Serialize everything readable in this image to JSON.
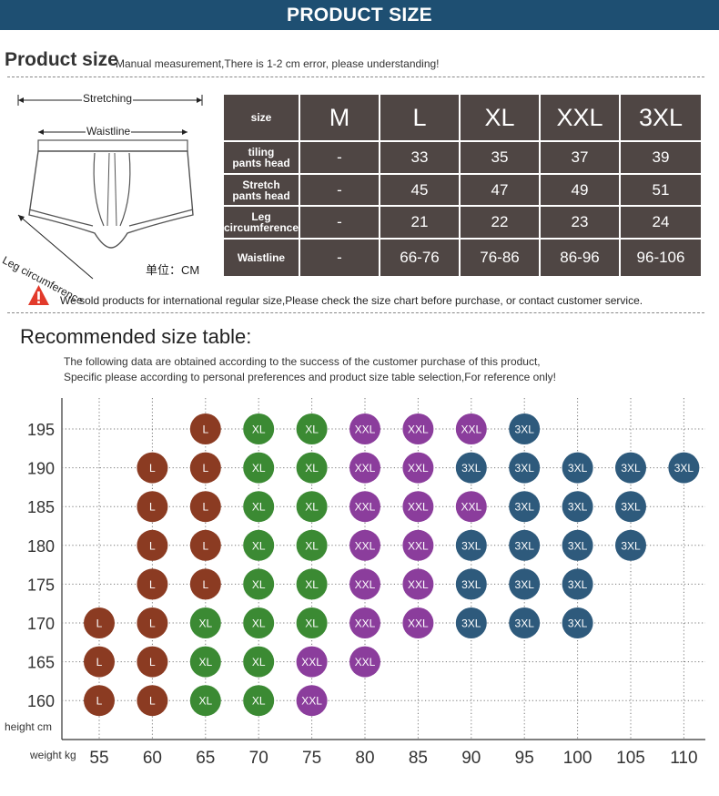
{
  "banner": {
    "title": "PRODUCT SIZE"
  },
  "product_size": {
    "title": "Product size",
    "note": "Manual measurement,There is 1-2 cm error, please understanding!"
  },
  "diagram": {
    "stretching": "Stretching",
    "waistline": "Waistline",
    "leg": "Leg circumference",
    "unit": "单位：CM"
  },
  "size_table": {
    "header_label": "size",
    "sizes": [
      "M",
      "L",
      "XL",
      "XXL",
      "3XL"
    ],
    "rows": [
      {
        "label": [
          "tiling",
          "pants head"
        ],
        "values": [
          "-",
          "33",
          "35",
          "37",
          "39"
        ]
      },
      {
        "label": [
          "Stretch",
          "pants head"
        ],
        "values": [
          "-",
          "45",
          "47",
          "49",
          "51"
        ]
      },
      {
        "label": [
          "Leg",
          "circumference"
        ],
        "values": [
          "-",
          "21",
          "22",
          "23",
          "24"
        ]
      },
      {
        "label": [
          "Waistline"
        ],
        "values": [
          "-",
          "66-76",
          "76-86",
          "86-96",
          "96-106"
        ]
      }
    ],
    "bg_color": "#4f4644"
  },
  "warning": {
    "text": "We sold products for international regular size,Please check the size chart before purchase, or contact customer service.",
    "icon": "warning-icon",
    "color": "#e23a2b"
  },
  "recommended": {
    "title": "Recommended size table:",
    "line1": "The following data are obtained according to the success of the customer purchase of this product,",
    "line2": "Specific please according to personal preferences and product size table selection,For reference only!"
  },
  "chart_data": {
    "type": "table",
    "x_label": "weight kg",
    "y_label": "height cm",
    "x": [
      55,
      60,
      65,
      70,
      75,
      80,
      85,
      90,
      95,
      100,
      105,
      110
    ],
    "y": [
      195,
      190,
      185,
      180,
      175,
      170,
      165,
      160
    ],
    "colors": {
      "L": "#8b3b22",
      "XL": "#3b8a33",
      "XXL": "#8b3d9c",
      "3XL": "#2e5a7c"
    },
    "grid": true,
    "cells": [
      [
        195,
        65,
        "L"
      ],
      [
        195,
        70,
        "XL"
      ],
      [
        195,
        75,
        "XL"
      ],
      [
        195,
        80,
        "XXL"
      ],
      [
        195,
        85,
        "XXL"
      ],
      [
        195,
        90,
        "XXL"
      ],
      [
        195,
        95,
        "3XL"
      ],
      [
        190,
        60,
        "L"
      ],
      [
        190,
        65,
        "L"
      ],
      [
        190,
        70,
        "XL"
      ],
      [
        190,
        75,
        "XL"
      ],
      [
        190,
        80,
        "XXL"
      ],
      [
        190,
        85,
        "XXL"
      ],
      [
        190,
        90,
        "3XL"
      ],
      [
        190,
        95,
        "3XL"
      ],
      [
        190,
        100,
        "3XL"
      ],
      [
        190,
        105,
        "3XL"
      ],
      [
        190,
        110,
        "3XL"
      ],
      [
        185,
        60,
        "L"
      ],
      [
        185,
        65,
        "L"
      ],
      [
        185,
        70,
        "XL"
      ],
      [
        185,
        75,
        "XL"
      ],
      [
        185,
        80,
        "XXL"
      ],
      [
        185,
        85,
        "XXL"
      ],
      [
        185,
        90,
        "XXL"
      ],
      [
        185,
        95,
        "3XL"
      ],
      [
        185,
        100,
        "3XL"
      ],
      [
        185,
        105,
        "3XL"
      ],
      [
        180,
        60,
        "L"
      ],
      [
        180,
        65,
        "L"
      ],
      [
        180,
        70,
        "XL"
      ],
      [
        180,
        75,
        "XL"
      ],
      [
        180,
        80,
        "XXL"
      ],
      [
        180,
        85,
        "XXL"
      ],
      [
        180,
        90,
        "3XL"
      ],
      [
        180,
        95,
        "3XL"
      ],
      [
        180,
        100,
        "3XL"
      ],
      [
        180,
        105,
        "3XL"
      ],
      [
        175,
        60,
        "L"
      ],
      [
        175,
        65,
        "L"
      ],
      [
        175,
        70,
        "XL"
      ],
      [
        175,
        75,
        "XL"
      ],
      [
        175,
        80,
        "XXL"
      ],
      [
        175,
        85,
        "XXL"
      ],
      [
        175,
        90,
        "3XL"
      ],
      [
        175,
        95,
        "3XL"
      ],
      [
        175,
        100,
        "3XL"
      ],
      [
        170,
        55,
        "L"
      ],
      [
        170,
        60,
        "L"
      ],
      [
        170,
        65,
        "XL"
      ],
      [
        170,
        70,
        "XL"
      ],
      [
        170,
        75,
        "XL"
      ],
      [
        170,
        80,
        "XXL"
      ],
      [
        170,
        85,
        "XXL"
      ],
      [
        170,
        90,
        "3XL"
      ],
      [
        170,
        95,
        "3XL"
      ],
      [
        170,
        100,
        "3XL"
      ],
      [
        165,
        55,
        "L"
      ],
      [
        165,
        60,
        "L"
      ],
      [
        165,
        65,
        "XL"
      ],
      [
        165,
        70,
        "XL"
      ],
      [
        165,
        75,
        "XXL"
      ],
      [
        165,
        80,
        "XXL"
      ],
      [
        160,
        55,
        "L"
      ],
      [
        160,
        60,
        "L"
      ],
      [
        160,
        65,
        "XL"
      ],
      [
        160,
        70,
        "XL"
      ],
      [
        160,
        75,
        "XXL"
      ]
    ]
  }
}
